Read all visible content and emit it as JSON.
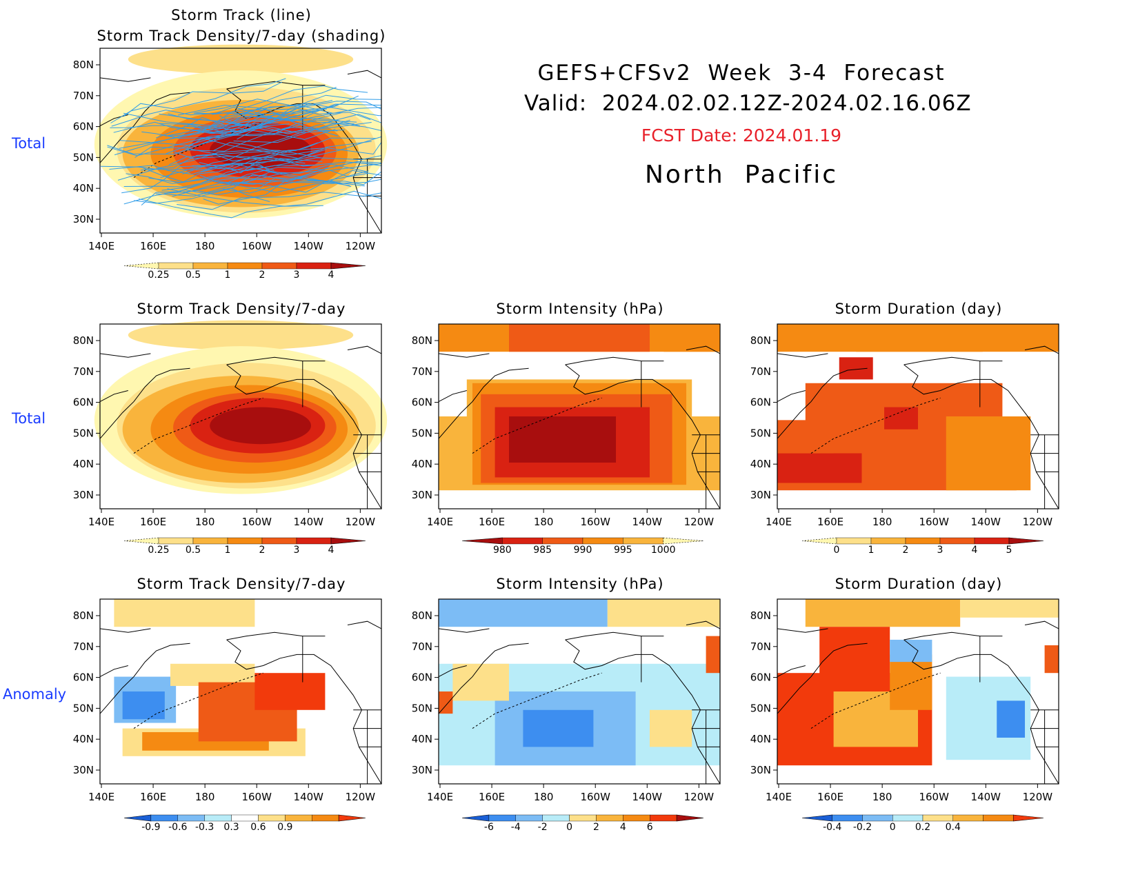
{
  "header": {
    "line1": "GEFS+CFSv2  Week  3-4  Forecast",
    "line2": "Valid:  2024.02.02.12Z-2024.02.16.06Z",
    "fcst_date": "FCST Date: 2024.01.19",
    "region": "North  Pacific"
  },
  "row_labels": {
    "top": "Total",
    "middle": "Total",
    "bottom": "Anomaly"
  },
  "axes": {
    "lon_labels": [
      "140E",
      "160E",
      "180",
      "160W",
      "140W",
      "120W"
    ],
    "lat_labels": [
      "80N",
      "70N",
      "60N",
      "50N",
      "40N",
      "30N"
    ]
  },
  "panels": {
    "p1": {
      "title1": "Storm Track (line)",
      "title2": "Storm Track Density/7-day (shading)"
    },
    "p2": {
      "title": "Storm Track Density/7-day"
    },
    "p3": {
      "title": "Storm Intensity (hPa)"
    },
    "p4": {
      "title": "Storm Duration (day)"
    },
    "p5": {
      "title": "Storm Track Density/7-day"
    },
    "p6": {
      "title": "Storm Intensity (hPa)"
    },
    "p7": {
      "title": "Storm Duration (day)"
    }
  },
  "colorbars": {
    "density": {
      "labels": [
        "0.25",
        "0.5",
        "1",
        "2",
        "3",
        "4"
      ],
      "colors": [
        "#fff7b0",
        "#fde08a",
        "#f9b43c",
        "#f58a12",
        "#ef5a16",
        "#d92212",
        "#a80e0e"
      ]
    },
    "intensity": {
      "labels": [
        "980",
        "985",
        "990",
        "995",
        "1000"
      ],
      "colors": [
        "#a80e0e",
        "#d92212",
        "#ef5a16",
        "#f58a12",
        "#f9b43c",
        "#fff7b0"
      ]
    },
    "duration": {
      "labels": [
        "0",
        "1",
        "2",
        "3",
        "4",
        "5"
      ],
      "colors": [
        "#fff7b0",
        "#fde08a",
        "#f9b43c",
        "#f58a12",
        "#ef5a16",
        "#d92212",
        "#a80e0e"
      ]
    },
    "density_anom": {
      "labels": [
        "-0.9",
        "-0.6",
        "-0.3",
        "0.3",
        "0.6",
        "0.9"
      ],
      "colors": [
        "#1a5fd6",
        "#3d8ef0",
        "#7cbcf5",
        "#b8ecf8",
        "#ffffff",
        "#fde08a",
        "#f9b43c",
        "#f58a12",
        "#f23a0c"
      ]
    },
    "intensity_anom": {
      "labels": [
        "-6",
        "-4",
        "-2",
        "0",
        "2",
        "4",
        "6"
      ],
      "colors": [
        "#1a5fd6",
        "#3d8ef0",
        "#7cbcf5",
        "#b8ecf8",
        "#fde08a",
        "#f9b43c",
        "#f58a12",
        "#f23a0c",
        "#a80e0e"
      ]
    },
    "duration_anom": {
      "labels": [
        "-0.4",
        "-0.2",
        "0",
        "0.2",
        "0.4"
      ],
      "colors": [
        "#1a5fd6",
        "#3d8ef0",
        "#7cbcf5",
        "#b8ecf8",
        "#fde08a",
        "#f9b43c",
        "#f58a12",
        "#f23a0c"
      ]
    }
  },
  "palette": {
    "track_line": "#2f9ce8",
    "label_blue": "#1a3cff",
    "fcst_red": "#e8202a"
  }
}
